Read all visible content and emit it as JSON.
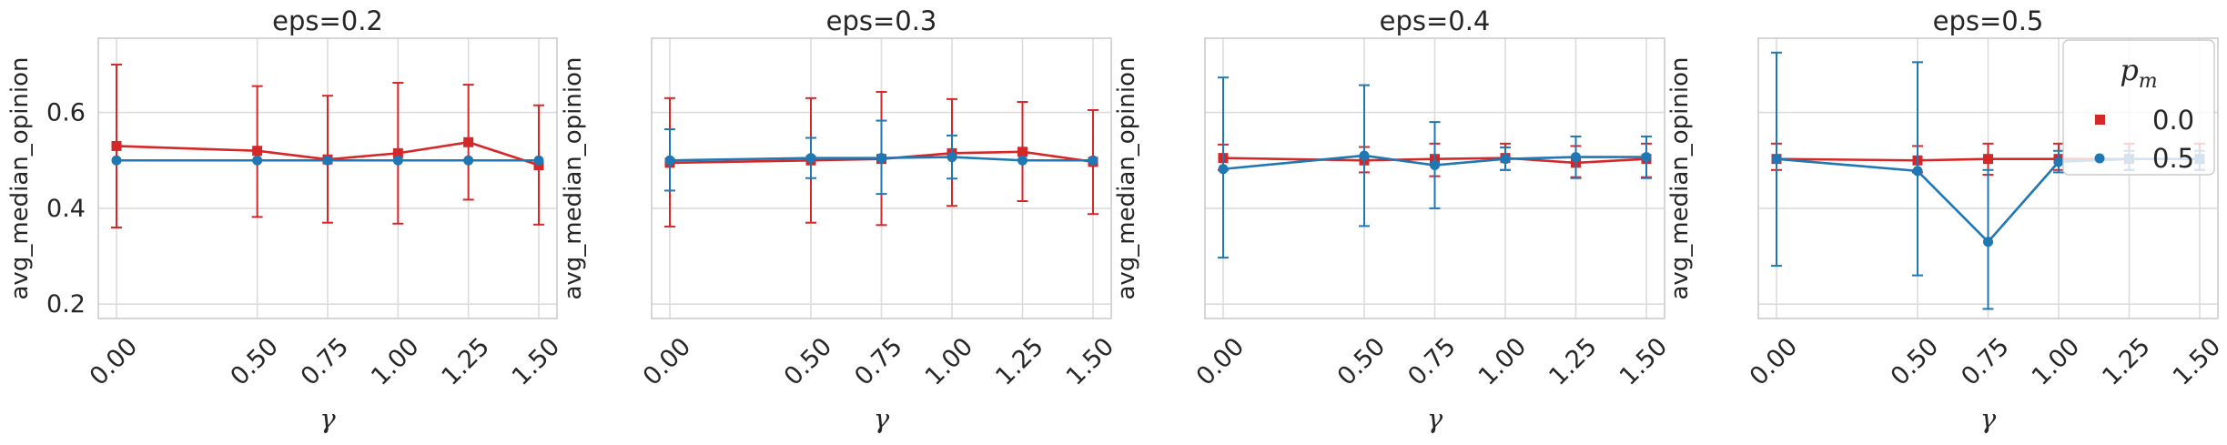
{
  "chart_data": [
    {
      "type": "line",
      "title": "eps=0.2",
      "xlabel": "γ",
      "ylabel": "avg_median_opinion",
      "x": [
        0.0,
        0.5,
        0.75,
        1.0,
        1.25,
        1.5
      ],
      "xtick_labels": [
        "0.00",
        "0.50",
        "0.75",
        "1.00",
        "1.25",
        "1.50"
      ],
      "ylim": [
        0.17,
        0.755
      ],
      "yticks": [
        0.2,
        0.4,
        0.6
      ],
      "ytick_labels": [
        "0.2",
        "0.4",
        "0.6"
      ],
      "grid": true,
      "series": [
        {
          "name": "0.0",
          "color": "#d62728",
          "marker": "square",
          "values": [
            0.53,
            0.52,
            0.502,
            0.515,
            0.538,
            0.49
          ],
          "err_low": [
            0.36,
            0.382,
            0.37,
            0.368,
            0.418,
            0.366
          ],
          "err_high": [
            0.7,
            0.655,
            0.635,
            0.662,
            0.658,
            0.615
          ]
        },
        {
          "name": "0.5",
          "color": "#1f77b4",
          "marker": "circle",
          "values": [
            0.5,
            0.5,
            0.5,
            0.5,
            0.5,
            0.5
          ],
          "err_low": [
            0.5,
            0.5,
            0.5,
            0.5,
            0.5,
            0.5
          ],
          "err_high": [
            0.5,
            0.5,
            0.5,
            0.5,
            0.5,
            0.5
          ]
        }
      ]
    },
    {
      "type": "line",
      "title": "eps=0.3",
      "xlabel": "γ",
      "ylabel": "avg_median_opinion",
      "x": [
        0.0,
        0.5,
        0.75,
        1.0,
        1.25,
        1.5
      ],
      "xtick_labels": [
        "0.00",
        "0.50",
        "0.75",
        "1.00",
        "1.25",
        "1.50"
      ],
      "ylim": [
        0.17,
        0.755
      ],
      "yticks": [
        0.2,
        0.4,
        0.6
      ],
      "ytick_labels": [
        "",
        "",
        ""
      ],
      "grid": true,
      "series": [
        {
          "name": "0.0",
          "color": "#d62728",
          "marker": "square",
          "values": [
            0.495,
            0.5,
            0.503,
            0.515,
            0.518,
            0.497
          ],
          "err_low": [
            0.362,
            0.37,
            0.365,
            0.405,
            0.415,
            0.388
          ],
          "err_high": [
            0.63,
            0.63,
            0.643,
            0.628,
            0.622,
            0.605
          ]
        },
        {
          "name": "0.5",
          "color": "#1f77b4",
          "marker": "circle",
          "values": [
            0.5,
            0.505,
            0.505,
            0.507,
            0.5,
            0.5
          ],
          "err_low": [
            0.437,
            0.463,
            0.43,
            0.462,
            0.5,
            0.5
          ],
          "err_high": [
            0.565,
            0.547,
            0.583,
            0.552,
            0.5,
            0.5
          ]
        }
      ]
    },
    {
      "type": "line",
      "title": "eps=0.4",
      "xlabel": "γ",
      "ylabel": "avg_median_opinion",
      "x": [
        0.0,
        0.5,
        0.75,
        1.0,
        1.25,
        1.5
      ],
      "xtick_labels": [
        "0.00",
        "0.50",
        "0.75",
        "1.00",
        "1.25",
        "1.50"
      ],
      "ylim": [
        0.17,
        0.755
      ],
      "yticks": [
        0.2,
        0.4,
        0.6
      ],
      "ytick_labels": [
        "",
        "",
        ""
      ],
      "grid": true,
      "series": [
        {
          "name": "0.0",
          "color": "#d62728",
          "marker": "square",
          "values": [
            0.505,
            0.5,
            0.503,
            0.505,
            0.495,
            0.503
          ],
          "err_low": [
            0.48,
            0.475,
            0.467,
            0.48,
            0.465,
            0.465
          ],
          "err_high": [
            0.533,
            0.528,
            0.535,
            0.535,
            0.53,
            0.535
          ]
        },
        {
          "name": "0.5",
          "color": "#1f77b4",
          "marker": "circle",
          "values": [
            0.482,
            0.51,
            0.49,
            0.503,
            0.507,
            0.507
          ],
          "err_low": [
            0.297,
            0.363,
            0.4,
            0.48,
            0.463,
            0.463
          ],
          "err_high": [
            0.673,
            0.657,
            0.58,
            0.527,
            0.55,
            0.55
          ]
        }
      ]
    },
    {
      "type": "line",
      "title": "eps=0.5",
      "xlabel": "γ",
      "ylabel": "avg_median_opinion",
      "x": [
        0.0,
        0.5,
        0.75,
        1.0,
        1.25,
        1.5
      ],
      "xtick_labels": [
        "0.00",
        "0.50",
        "0.75",
        "1.00",
        "1.25",
        "1.50"
      ],
      "ylim": [
        0.17,
        0.755
      ],
      "yticks": [
        0.2,
        0.4,
        0.6
      ],
      "ytick_labels": [
        "",
        "",
        ""
      ],
      "grid": true,
      "legend": {
        "title": "p_m",
        "placement": "top-right",
        "entries": [
          "0.0",
          "0.5"
        ]
      },
      "series": [
        {
          "name": "0.0",
          "color": "#d62728",
          "marker": "square",
          "values": [
            0.503,
            0.5,
            0.503,
            0.503,
            0.503,
            0.503
          ],
          "err_low": [
            0.48,
            0.475,
            0.47,
            0.48,
            0.48,
            0.48
          ],
          "err_high": [
            0.535,
            0.53,
            0.535,
            0.535,
            0.535,
            0.535
          ]
        },
        {
          "name": "0.5",
          "color": "#1f77b4",
          "marker": "circle",
          "values": [
            0.503,
            0.478,
            0.33,
            0.497,
            0.503,
            0.503
          ],
          "err_low": [
            0.28,
            0.26,
            0.19,
            0.475,
            0.48,
            0.48
          ],
          "err_high": [
            0.725,
            0.705,
            0.48,
            0.52,
            0.52,
            0.52
          ]
        }
      ]
    }
  ]
}
